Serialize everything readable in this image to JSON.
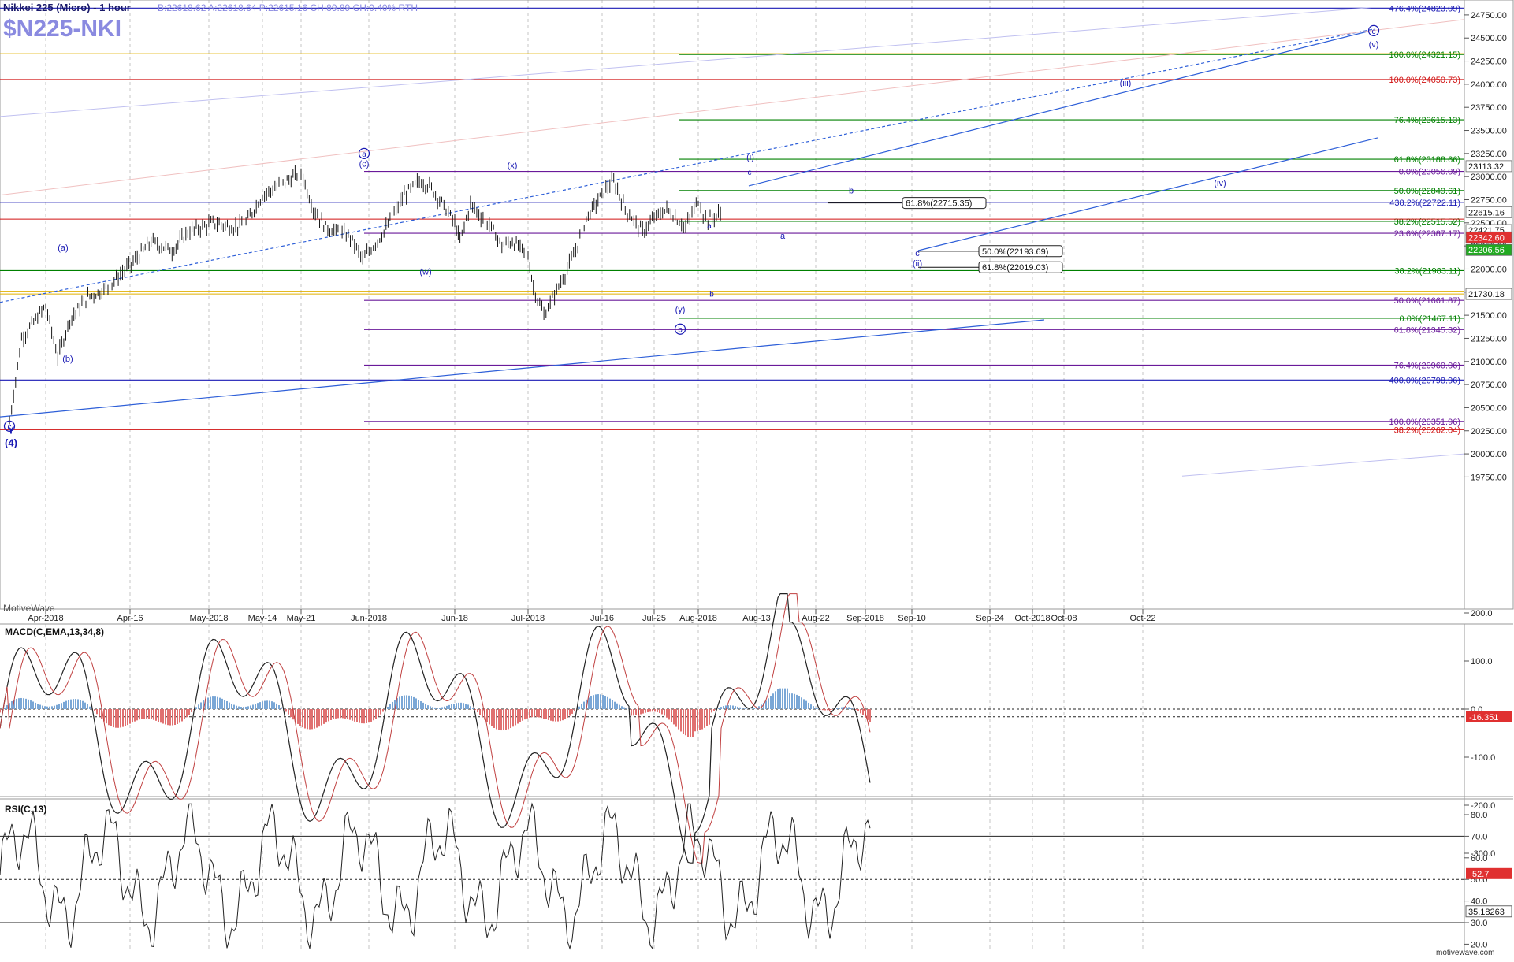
{
  "header": {
    "instrument": "Nikkei 225 (Micro) - 1 hour",
    "quote": "B:22618.62  A:22618.64  P:22615.16  CH:89.89  CH:0.40%  RTH",
    "symbol": "$N225-NKI",
    "watermark": "MotiveWave",
    "footer_site": "motivewave.com"
  },
  "colors": {
    "bg": "#ffffff",
    "grid": "#c8c8c8",
    "price": "#1a1a1a",
    "blue": "#1a1ab4",
    "red": "#d01010",
    "green": "#008000",
    "purple": "#6a1a9a",
    "gold": "#e0b000",
    "wave": "#2e5fd8",
    "macd_pos": "#7aa7d6",
    "macd_neg": "#e07070"
  },
  "chart_data": [
    {
      "type": "line",
      "title": "Nikkei 225 (Micro) - 1 hour",
      "ylim": [
        19600,
        24900
      ],
      "x_ticks": [
        "Apr-2018",
        "Apr-16",
        "May-2018",
        "May-14",
        "May-21",
        "Jun-2018",
        "Jun-18",
        "Jul-2018",
        "Jul-16",
        "Jul-25",
        "Aug-2018",
        "Aug-13",
        "Aug-22",
        "Sep-2018",
        "Sep-10",
        "Sep-24",
        "Oct-2018",
        "Oct-08",
        "Oct-22"
      ],
      "y_ticks": [
        19750,
        20000,
        20250,
        20500,
        20750,
        21000,
        21250,
        21500,
        21750,
        22000,
        22250,
        22500,
        22750,
        23000,
        23250,
        23500,
        23750,
        24000,
        24250,
        24500,
        24750
      ],
      "price_path": [
        [
          "Mar-27",
          20350
        ],
        [
          "Mar-28",
          20800
        ],
        [
          "Mar-29",
          21250
        ],
        [
          "Apr-02",
          21600
        ],
        [
          "Apr-04",
          21050
        ],
        [
          "Apr-06",
          21450
        ],
        [
          "Apr-09",
          21700
        ],
        [
          "Apr-11",
          21750
        ],
        [
          "Apr-13",
          21850
        ],
        [
          "Apr-17",
          22100
        ],
        [
          "Apr-20",
          22300
        ],
        [
          "Apr-24",
          22200
        ],
        [
          "Apr-27",
          22400
        ],
        [
          "May-02",
          22500
        ],
        [
          "May-07",
          22450
        ],
        [
          "May-10",
          22500
        ],
        [
          "May-14",
          22800
        ],
        [
          "May-17",
          22900
        ],
        [
          "May-21",
          23050
        ],
        [
          "May-23",
          22650
        ],
        [
          "May-25",
          22450
        ],
        [
          "May-29",
          22350
        ],
        [
          "May-31",
          22100
        ],
        [
          "Jun-04",
          22400
        ],
        [
          "Jun-06",
          22600
        ],
        [
          "Jun-08",
          22800
        ],
        [
          "Jun-11",
          22950
        ],
        [
          "Jun-13",
          22900
        ],
        [
          "Jun-15",
          22750
        ],
        [
          "Jun-18",
          22500
        ],
        [
          "Jun-19",
          22300
        ],
        [
          "Jun-21",
          22700
        ],
        [
          "Jun-25",
          22450
        ],
        [
          "Jun-27",
          22250
        ],
        [
          "Jun-29",
          22300
        ],
        [
          "Jul-02",
          22150
        ],
        [
          "Jul-03",
          21800
        ],
        [
          "Jul-05",
          21500
        ],
        [
          "Jul-09",
          21950
        ],
        [
          "Jul-11",
          22200
        ],
        [
          "Jul-13",
          22550
        ],
        [
          "Jul-17",
          22900
        ],
        [
          "Jul-18",
          22950
        ],
        [
          "Jul-20",
          22650
        ],
        [
          "Jul-23",
          22400
        ],
        [
          "Jul-25",
          22550
        ],
        [
          "Jul-27",
          22650
        ],
        [
          "Jul-30",
          22450
        ],
        [
          "Aug-01",
          22750
        ],
        [
          "Aug-02",
          22600
        ],
        [
          "Aug-03",
          22530
        ],
        [
          "Aug-06",
          22615
        ]
      ],
      "levels": [
        {
          "label": "476.4%(24823.09)",
          "price": 24823.09,
          "color": "blue"
        },
        {
          "label": "100.0%(24321.15)",
          "price": 24321.15,
          "color": "green"
        },
        {
          "label": "100.0%(24050.73)",
          "price": 24050.73,
          "color": "red"
        },
        {
          "label": "76.4%(23615.13)",
          "price": 23615.13,
          "color": "green"
        },
        {
          "label": "61.8%(23188.66)",
          "price": 23188.66,
          "color": "green"
        },
        {
          "label": "0.0%(23056.09)",
          "price": 23056.09,
          "color": "purple"
        },
        {
          "label": "50.0%(22849.61)",
          "price": 22849.61,
          "color": "green"
        },
        {
          "label": "438.2%(22722.11)",
          "price": 22722.11,
          "color": "blue"
        },
        {
          "label": "38.2%(22515.52)",
          "price": 22515.52,
          "color": "green"
        },
        {
          "label": "23.6%(22387.17)",
          "price": 22387.17,
          "color": "purple"
        },
        {
          "label": "38.2%(21983.11)",
          "price": 21983.11,
          "color": "green"
        },
        {
          "label": "50.0%(21661.87)",
          "price": 21661.87,
          "color": "purple"
        },
        {
          "label": "0.0%(21467.11)",
          "price": 21467.11,
          "color": "green"
        },
        {
          "label": "61.8%(21345.32)",
          "price": 21345.32,
          "color": "purple"
        },
        {
          "label": "76.4%(20960.06)",
          "price": 20960.06,
          "color": "purple"
        },
        {
          "label": "400.0%(20798.96)",
          "price": 20798.96,
          "color": "blue"
        },
        {
          "label": "100.0%(20351.96)",
          "price": 20351.96,
          "color": "purple"
        },
        {
          "label": "38.2%(20262.04)",
          "price": 20262.04,
          "color": "red"
        }
      ],
      "price_boxes": [
        {
          "label": "23113.32",
          "price": 23113.32,
          "style": "white"
        },
        {
          "label": "22615.16",
          "price": 22615.16,
          "style": "white"
        },
        {
          "label": "22421.75",
          "price": 22421.75,
          "style": "white"
        },
        {
          "label": "22342.60",
          "price": 22342.6,
          "style": "red"
        },
        {
          "label": "22206.56",
          "price": 22206.56,
          "style": "green"
        },
        {
          "label": "21730.18",
          "price": 21730.18,
          "style": "white"
        }
      ],
      "projection_boxes": [
        {
          "label": "61.8%(22715.35)",
          "price": 22715.35
        },
        {
          "label": "50.0%(22193.69)",
          "price": 22193.69
        },
        {
          "label": "61.8%(22019.03)",
          "price": 22019.03
        }
      ],
      "wave_labels": [
        "(a)",
        "(b)",
        "Y",
        "(4)",
        "(c)",
        "(w)",
        "(x)",
        "(y)",
        "(i)",
        "c",
        "a",
        "b",
        "(ii)",
        "(iii)",
        "(iv)",
        "(v)"
      ],
      "circled_labels": [
        "a",
        "b",
        "c"
      ]
    },
    {
      "type": "line",
      "title": "MACD(C,EMA,13,34,8)",
      "ylim": [
        -350,
        260
      ],
      "y_ticks": [
        200.0,
        100.0,
        0.0,
        -100.0,
        -200.0,
        -300.0
      ],
      "y_tick_labels": [
        "200.0",
        "100.0",
        "0.0",
        "-100.0",
        "-200.0",
        "-300.0"
      ],
      "current_value": "-16.351"
    },
    {
      "type": "line",
      "title": "RSI(C,13)",
      "ylim": [
        17,
        87
      ],
      "y_ticks": [
        80.0,
        70.0,
        60.0,
        50.0,
        40.0,
        30.0,
        20.0
      ],
      "y_tick_labels": [
        "80.0",
        "70.0",
        "60.0",
        "50.0",
        "40.0",
        "30.0",
        "20.0"
      ],
      "current_value": "52.7",
      "average_value": "35.18263"
    }
  ]
}
